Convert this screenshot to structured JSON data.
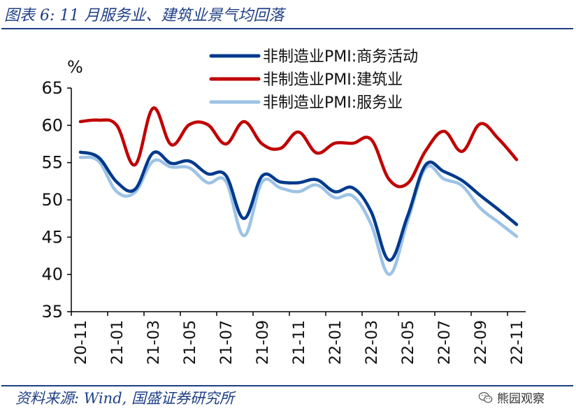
{
  "title": "图表 6:  11 月服务业、建筑业景气均回落",
  "source": "资料来源:  Wind,  国盛证券研究所",
  "watermark": "熊园观察",
  "watermark_icon": "wechat-icon",
  "chart_data": {
    "type": "line",
    "ylabel": "%",
    "ylim": [
      35,
      65
    ],
    "yticks": [
      35,
      40,
      45,
      50,
      55,
      60,
      65
    ],
    "x": [
      "20-11",
      "20-12",
      "21-01",
      "21-02",
      "21-03",
      "21-04",
      "21-05",
      "21-06",
      "21-07",
      "21-08",
      "21-09",
      "21-10",
      "21-11",
      "21-12",
      "22-01",
      "22-02",
      "22-03",
      "22-04",
      "22-05",
      "22-06",
      "22-07",
      "22-08",
      "22-09",
      "22-10",
      "22-11"
    ],
    "xtick_labels": [
      "20-11",
      "21-01",
      "21-03",
      "21-05",
      "21-07",
      "21-09",
      "21-11",
      "22-01",
      "22-03",
      "22-05",
      "22-07",
      "22-09",
      "22-11"
    ],
    "legend_position": "top-right",
    "series": [
      {
        "name": "非制造业PMI:商务活动",
        "color": "#003a8c",
        "values": [
          56.4,
          55.7,
          52.4,
          51.4,
          56.3,
          54.9,
          55.2,
          53.5,
          53.3,
          47.5,
          53.2,
          52.4,
          52.3,
          52.7,
          51.1,
          51.6,
          48.4,
          41.9,
          47.8,
          54.7,
          53.8,
          52.6,
          50.6,
          48.7,
          46.7
        ]
      },
      {
        "name": "非制造业PMI:建筑业",
        "color": "#c00000",
        "values": [
          60.5,
          60.7,
          60.0,
          54.7,
          62.3,
          57.4,
          60.1,
          60.1,
          57.5,
          60.5,
          57.5,
          56.9,
          59.1,
          56.3,
          57.6,
          57.6,
          58.1,
          52.7,
          52.2,
          56.6,
          59.2,
          56.5,
          60.2,
          58.2,
          55.4
        ]
      },
      {
        "name": "非制造业PMI:服务业",
        "color": "#9dc3e6",
        "values": [
          55.7,
          55.2,
          51.1,
          51.0,
          55.2,
          54.4,
          54.3,
          52.3,
          52.5,
          45.2,
          52.4,
          51.6,
          51.1,
          52.0,
          50.3,
          50.5,
          46.7,
          40.0,
          47.1,
          54.3,
          52.8,
          51.9,
          48.9,
          47.0,
          45.1
        ]
      }
    ]
  }
}
